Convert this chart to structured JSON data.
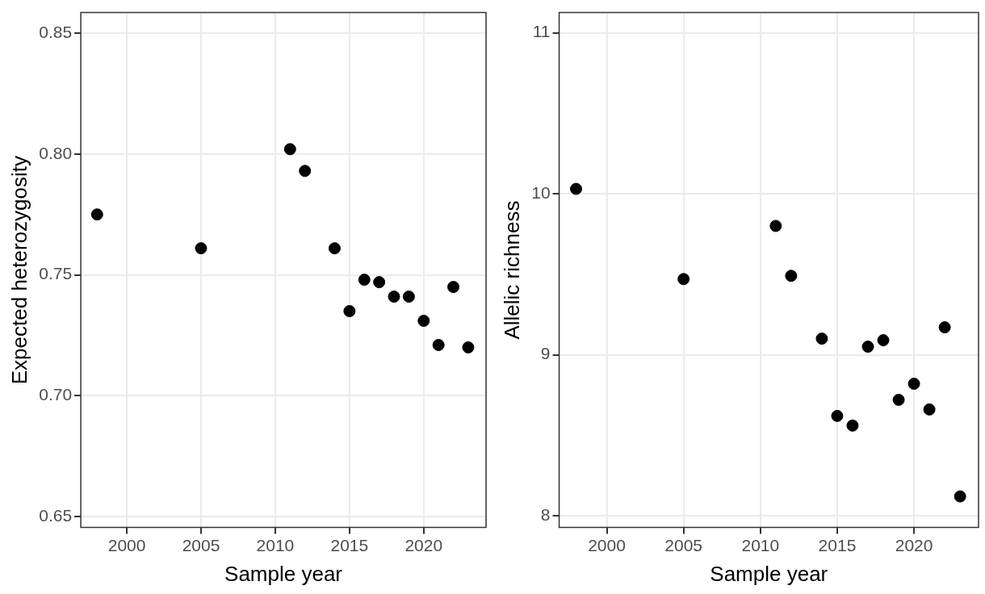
{
  "chart_data": [
    {
      "type": "scatter",
      "xlabel": "Sample year",
      "ylabel": "Expected heterozygosity",
      "grid": true,
      "legend": false,
      "marker": "circle",
      "x": [
        1998,
        2005,
        2011,
        2012,
        2014,
        2015,
        2016,
        2017,
        2018,
        2019,
        2020,
        2021,
        2022,
        2023
      ],
      "series": [
        {
          "color": "#000000",
          "values": [
            0.775,
            0.761,
            0.802,
            0.793,
            0.761,
            0.735,
            0.748,
            0.747,
            0.741,
            0.741,
            0.731,
            0.721,
            0.745,
            0.72
          ]
        }
      ],
      "xlim": [
        1996.9,
        2024.2
      ],
      "xticks": [
        2000,
        2005,
        2010,
        2015,
        2020
      ],
      "ylim": [
        0.6455,
        0.8585
      ],
      "yticks": [
        {
          "value": 0.65,
          "label": "0.65"
        },
        {
          "value": 0.7,
          "label": "0.70"
        },
        {
          "value": 0.75,
          "label": "0.75"
        },
        {
          "value": 0.8,
          "label": "0.80"
        },
        {
          "value": 0.85,
          "label": "0.85"
        }
      ]
    },
    {
      "type": "scatter",
      "xlabel": "Sample year",
      "ylabel": "Allelic richness",
      "grid": true,
      "legend": false,
      "marker": "circle",
      "x": [
        1998,
        2005,
        2011,
        2012,
        2014,
        2015,
        2016,
        2017,
        2018,
        2019,
        2020,
        2021,
        2022,
        2023
      ],
      "series": [
        {
          "color": "#000000",
          "values": [
            10.03,
            9.47,
            9.8,
            9.49,
            9.1,
            8.62,
            8.56,
            9.05,
            9.09,
            8.72,
            8.82,
            8.66,
            9.17,
            8.12
          ]
        }
      ],
      "xlim": [
        1996.9,
        2024.2
      ],
      "xticks": [
        2000,
        2005,
        2010,
        2015,
        2020
      ],
      "ylim": [
        7.927,
        11.125
      ],
      "yticks": [
        8,
        9,
        10,
        11
      ]
    }
  ]
}
